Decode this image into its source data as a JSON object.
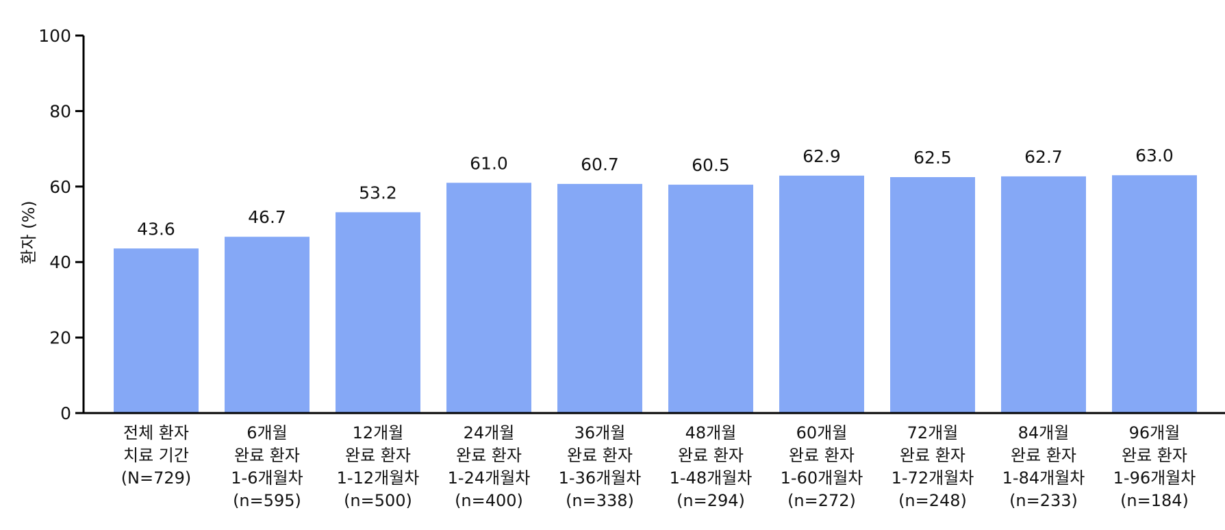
{
  "chart_data": {
    "type": "bar",
    "ylabel": "환자 (%)",
    "ylim": [
      0,
      100
    ],
    "yticks": [
      "0",
      "20",
      "40",
      "60",
      "80",
      "100"
    ],
    "bar_color": "#85a8f6",
    "axis_color": "#000000",
    "categories": [
      [
        "전체 환자",
        "치료 기간",
        "(N=729)"
      ],
      [
        "6개월",
        "완료 환자",
        "1-6개월차",
        "(n=595)"
      ],
      [
        "12개월",
        "완료 환자",
        "1-12개월차",
        "(n=500)"
      ],
      [
        "24개월",
        "완료 환자",
        "1-24개월차",
        "(n=400)"
      ],
      [
        "36개월",
        "완료 환자",
        "1-36개월차",
        "(n=338)"
      ],
      [
        "48개월",
        "완료 환자",
        "1-48개월차",
        "(n=294)"
      ],
      [
        "60개월",
        "완료 환자",
        "1-60개월차",
        "(n=272)"
      ],
      [
        "72개월",
        "완료 환자",
        "1-72개월차",
        "(n=248)"
      ],
      [
        "84개월",
        "완료 환자",
        "1-84개월차",
        "(n=233)"
      ],
      [
        "96개월",
        "완료 환자",
        "1-96개월차",
        "(n=184)"
      ]
    ],
    "values": [
      43.6,
      46.7,
      53.2,
      61.0,
      60.7,
      60.5,
      62.9,
      62.5,
      62.7,
      63.0
    ],
    "value_labels": [
      "43.6",
      "46.7",
      "53.2",
      "61.0",
      "60.7",
      "60.5",
      "62.9",
      "62.5",
      "62.7",
      "63.0"
    ]
  }
}
